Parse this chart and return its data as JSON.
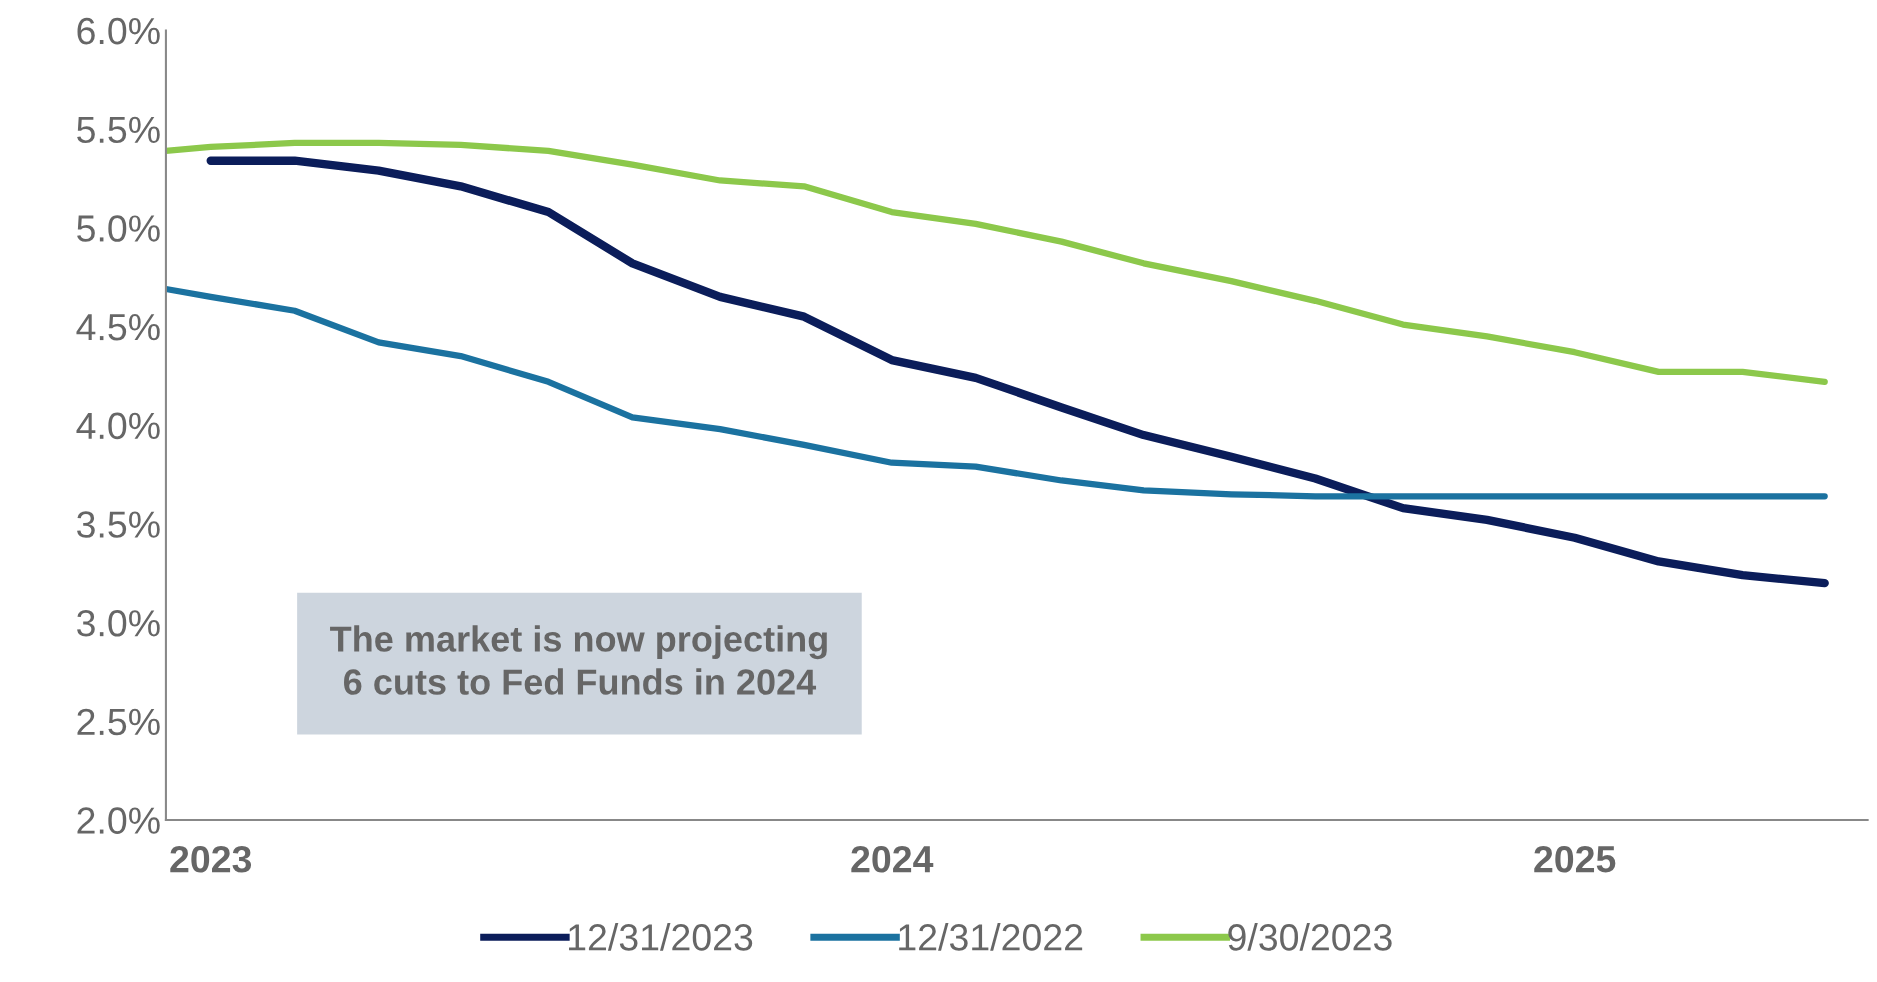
{
  "chart_data": {
    "type": "line",
    "xlim": [
      "2022-12-08",
      "2025-06-07"
    ],
    "xticks": [
      "2023",
      "2024",
      "2025"
    ],
    "ylim": [
      2.0,
      6.0
    ],
    "yticks": [
      {
        "value": 2.0,
        "label": "2.0%"
      },
      {
        "value": 2.5,
        "label": "2.5%"
      },
      {
        "value": 3.0,
        "label": "3.0%"
      },
      {
        "value": 3.5,
        "label": "3.5%"
      },
      {
        "value": 4.0,
        "label": "4.0%"
      },
      {
        "value": 4.5,
        "label": "4.5%"
      },
      {
        "value": 5.0,
        "label": "5.0%"
      },
      {
        "value": 5.5,
        "label": "5.5%"
      },
      {
        "value": 6.0,
        "label": "6.0%"
      }
    ],
    "grid": false,
    "legend": "bottom",
    "annotations": [
      "The market is now projecting\n6 cuts to Fed Funds in 2024"
    ],
    "series": [
      {
        "name": "12/31/2023",
        "color": "#0b1d5a",
        "x": [
          "2023-01-01",
          "2023-02-15",
          "2023-04-01",
          "2023-05-15",
          "2023-07-01",
          "2023-08-15",
          "2023-10-01",
          "2023-11-15",
          "2024-01-01",
          "2024-02-15",
          "2024-04-01",
          "2024-05-15",
          "2024-07-01",
          "2024-08-15",
          "2024-10-01",
          "2024-11-15",
          "2025-01-01",
          "2025-02-15",
          "2025-04-01",
          "2025-05-15"
        ],
        "values": [
          5.34,
          5.34,
          5.29,
          5.21,
          5.08,
          4.82,
          4.65,
          4.55,
          4.33,
          4.24,
          4.09,
          3.95,
          3.84,
          3.73,
          3.58,
          3.52,
          3.43,
          3.31,
          3.24,
          3.2
        ]
      },
      {
        "name": "12/31/2022",
        "color": "#1b72a0",
        "x": [
          "2022-12-08",
          "2023-01-01",
          "2023-02-15",
          "2023-04-01",
          "2023-05-15",
          "2023-07-01",
          "2023-08-15",
          "2023-10-01",
          "2023-11-15",
          "2024-01-01",
          "2024-02-15",
          "2024-04-01",
          "2024-05-15",
          "2024-07-01",
          "2024-08-15",
          "2024-10-01",
          "2024-11-15",
          "2025-01-01",
          "2025-02-15",
          "2025-04-01",
          "2025-05-15"
        ],
        "values": [
          4.69,
          4.65,
          4.58,
          4.42,
          4.35,
          4.22,
          4.04,
          3.98,
          3.9,
          3.81,
          3.79,
          3.72,
          3.67,
          3.65,
          3.64,
          3.64,
          3.64,
          3.64,
          3.64,
          3.64,
          3.64
        ]
      },
      {
        "name": "9/30/2023",
        "color": "#8cc84b",
        "x": [
          "2022-12-08",
          "2023-01-01",
          "2023-02-15",
          "2023-04-01",
          "2023-05-15",
          "2023-07-01",
          "2023-08-15",
          "2023-10-01",
          "2023-11-15",
          "2024-01-01",
          "2024-02-15",
          "2024-04-01",
          "2024-05-15",
          "2024-07-01",
          "2024-08-15",
          "2024-10-01",
          "2024-11-15",
          "2025-01-01",
          "2025-02-15",
          "2025-04-01",
          "2025-05-15"
        ],
        "values": [
          5.39,
          5.41,
          5.43,
          5.43,
          5.42,
          5.39,
          5.32,
          5.24,
          5.21,
          5.08,
          5.02,
          4.93,
          4.82,
          4.73,
          4.63,
          4.51,
          4.45,
          4.37,
          4.27,
          4.27,
          4.22
        ]
      }
    ]
  }
}
